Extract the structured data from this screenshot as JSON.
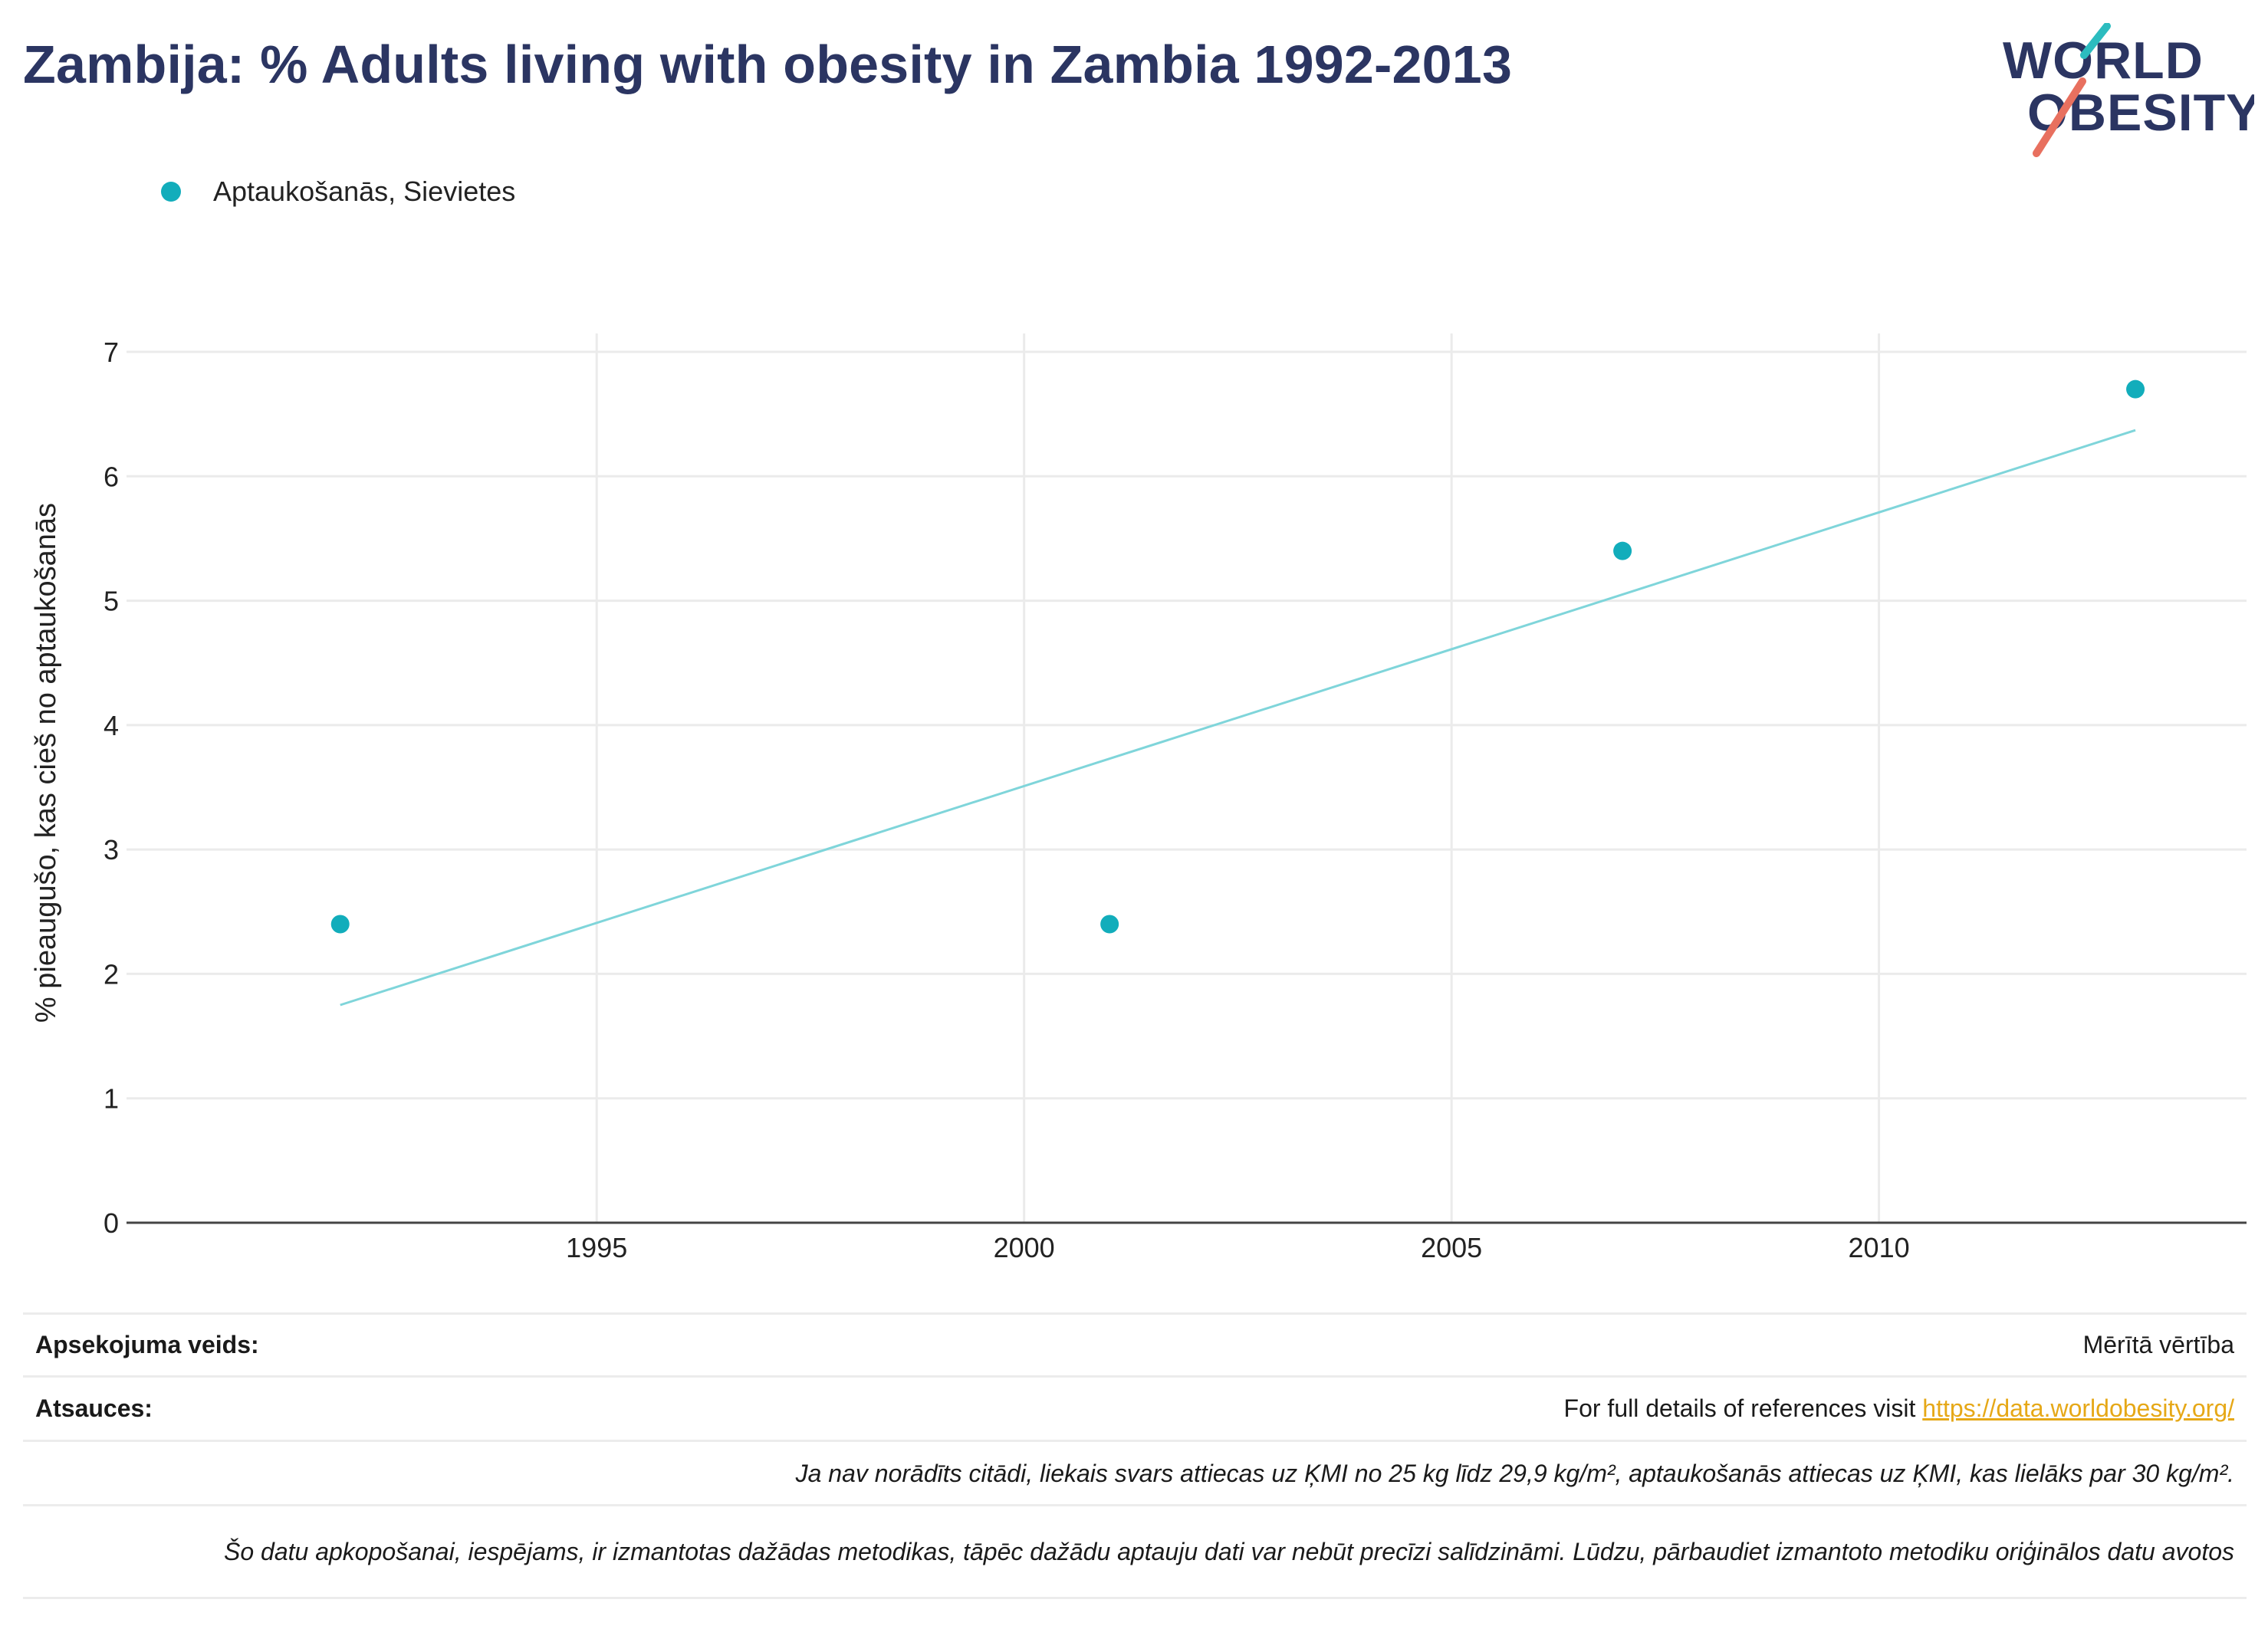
{
  "header": {
    "title": "Zambija: % Adults living with obesity in Zambia 1992-2013"
  },
  "logo": {
    "line1": "WORLD",
    "line2": "OBESITY",
    "colors": {
      "text": "#2b3562",
      "teal": "#2cbcbf",
      "coral": "#e8705f"
    }
  },
  "chart_data": {
    "type": "scatter",
    "title": "Zambija: % Adults living with obesity in Zambia 1992-2013",
    "ylabel": "% pieaugušo, kas cieš no aptaukošanās",
    "xlabel": "",
    "xlim": [
      1989.5,
      2014.3
    ],
    "ylim": [
      0,
      7
    ],
    "x_ticks": [
      1995,
      2000,
      2005,
      2010
    ],
    "y_ticks": [
      0,
      1,
      2,
      3,
      4,
      5,
      6,
      7
    ],
    "grid": true,
    "legend_position": "top-left",
    "series": [
      {
        "name": "Aptaukošanās, Sievietes",
        "color": "#12adbb",
        "points": [
          {
            "x": 1992,
            "y": 2.4
          },
          {
            "x": 2001,
            "y": 2.4
          },
          {
            "x": 2007,
            "y": 5.4
          },
          {
            "x": 2013,
            "y": 6.7
          }
        ],
        "trendline": {
          "color": "#7fd5da",
          "start": {
            "x": 1992,
            "y": 1.75
          },
          "end": {
            "x": 2013,
            "y": 6.37
          }
        }
      }
    ]
  },
  "footer": {
    "survey_type_label": "Apsekojuma veids:",
    "survey_type_value": "Mērītā vērtība",
    "references_label": "Atsauces:",
    "references_text": "For full details of references visit ",
    "references_link": "https://data.worldobesity.org/",
    "note1": "Ja nav norādīts citādi, liekais svars attiecas uz ĶMI no 25 kg līdz 29,9 kg/m², aptaukošanās attiecas uz ĶMI, kas lielāks par 30 kg/m².",
    "note2": "Šo datu apkopošanai, iespējams, ir izmantotas dažādas metodikas, tāpēc dažādu aptauju dati var nebūt precīzi salīdzināmi. Lūdzu, pārbaudiet izmantoto metodiku oriģinālos datu avotos"
  }
}
